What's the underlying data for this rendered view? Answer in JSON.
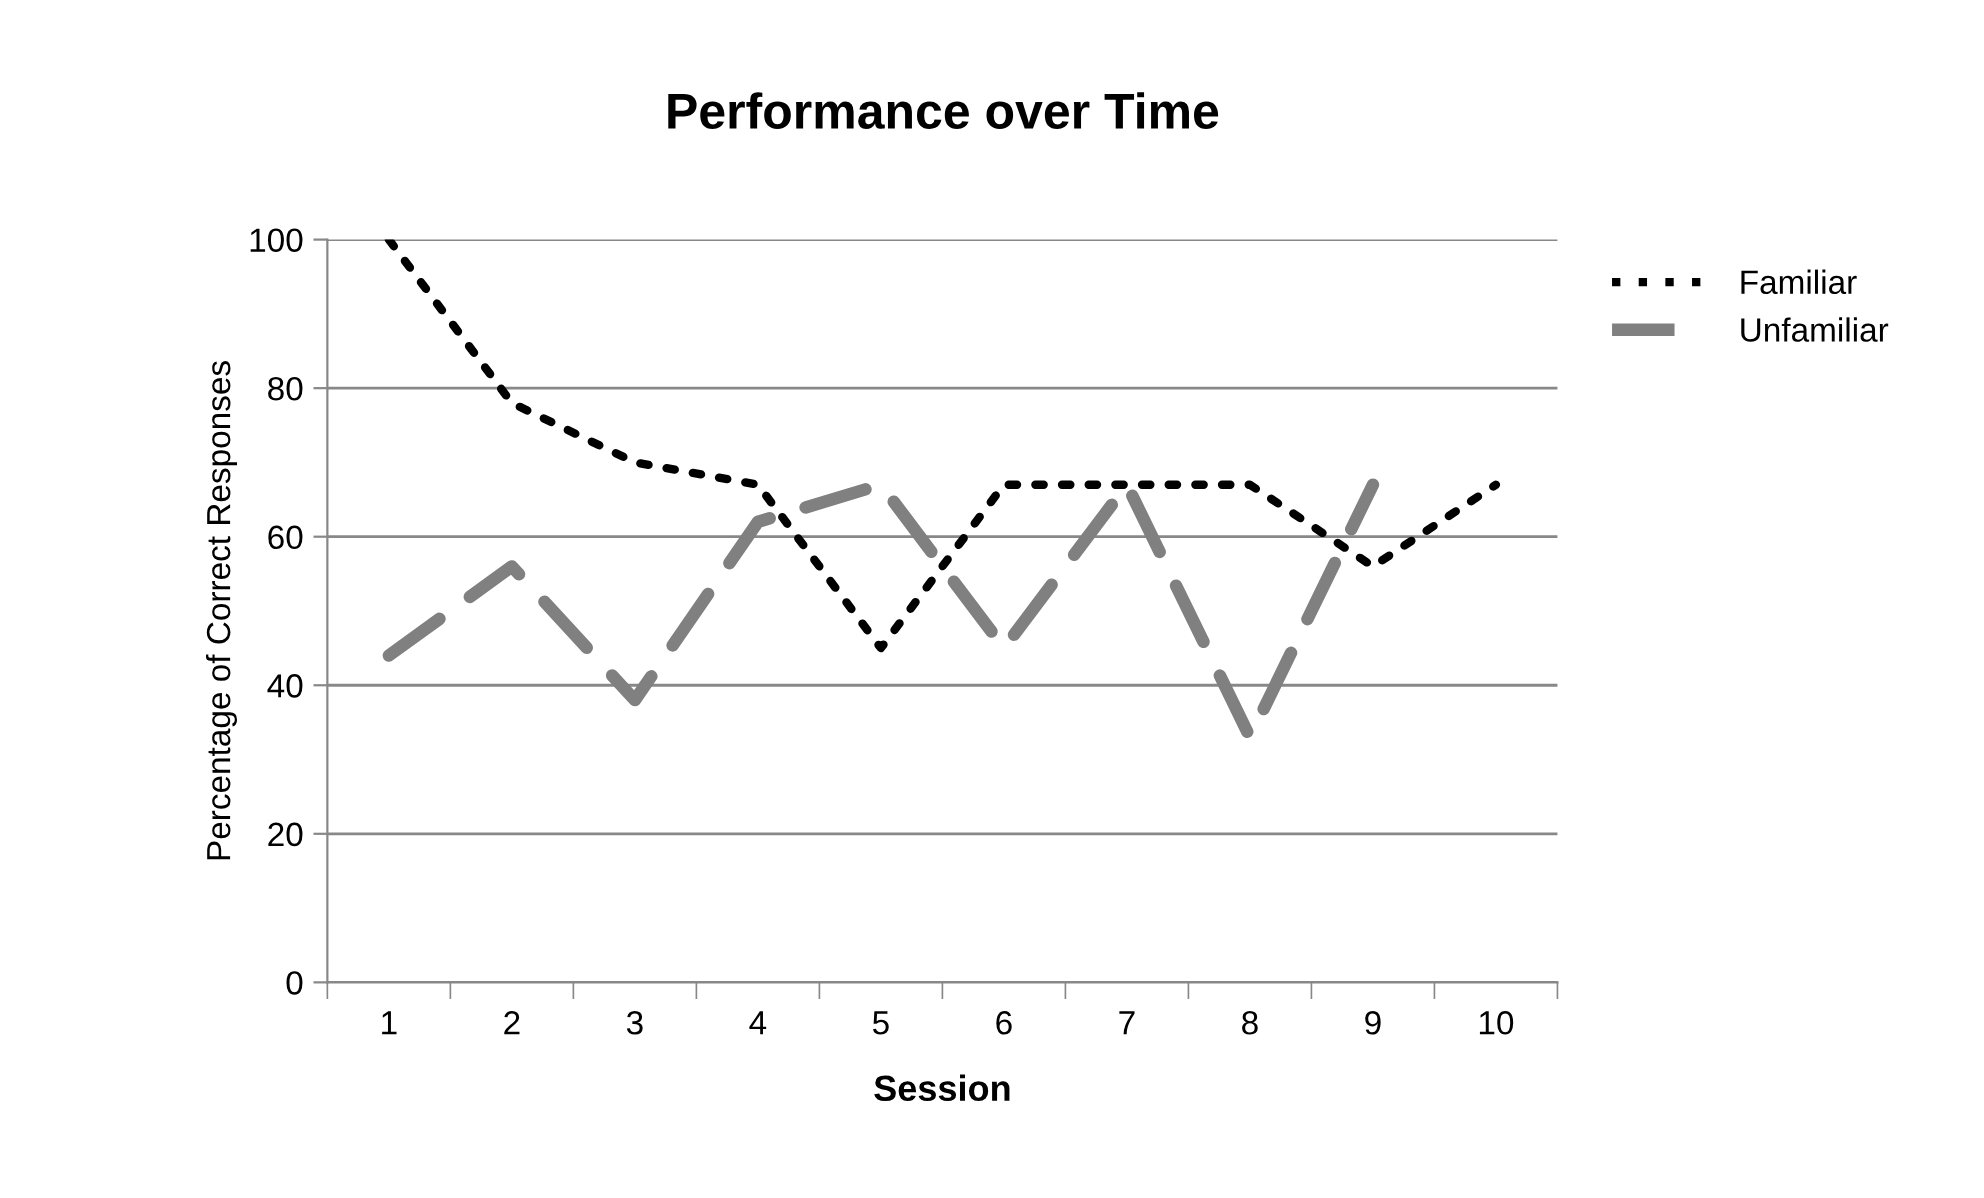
{
  "chart_data": {
    "type": "line",
    "title": "Performance over Time",
    "xlabel": "Session",
    "ylabel": "Percentage of Correct Responses",
    "categories": [
      "1",
      "2",
      "3",
      "4",
      "5",
      "6",
      "7",
      "8",
      "9",
      "10"
    ],
    "series": [
      {
        "name": "Familiar",
        "color": "#000000",
        "line_style": "dotted",
        "values": [
          100,
          78,
          70,
          67,
          45,
          67,
          67,
          67,
          56,
          67
        ]
      },
      {
        "name": "Unfamiliar",
        "color": "#808080",
        "line_style": "dashed",
        "values": [
          44,
          56,
          38,
          62,
          67,
          45,
          67,
          33,
          67,
          null
        ]
      }
    ],
    "ylim": [
      0,
      100
    ],
    "yticks": [
      0,
      20,
      40,
      60,
      80,
      100
    ],
    "grid": "y",
    "legend": "right",
    "marker": "none"
  }
}
